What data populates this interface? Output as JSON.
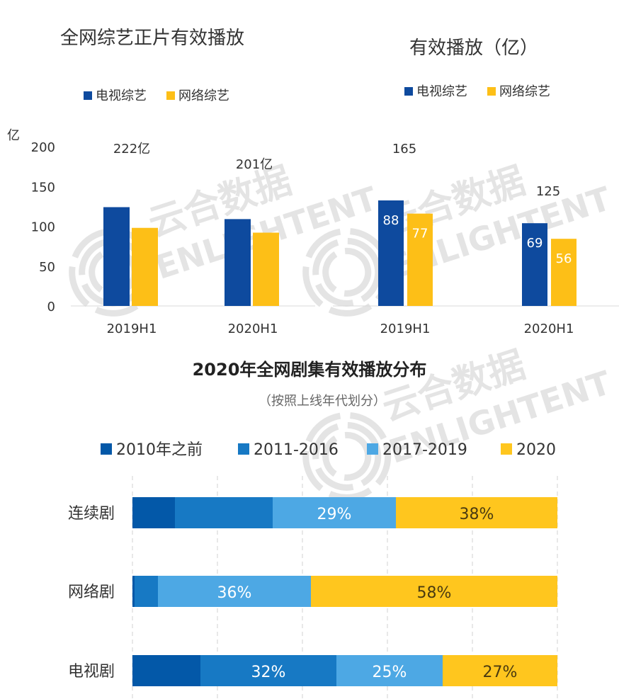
{
  "watermark": {
    "cn": "云合数据",
    "en": "ENLIGHTENT"
  },
  "colors": {
    "tv": "#0E4A9E",
    "net": "#FDBF17",
    "before2010": "#0358A8",
    "y2011_2016": "#1779C4",
    "y2017_2019": "#4DA8E4",
    "y2020": "#FFC61E"
  },
  "chart_data": [
    {
      "type": "bar",
      "title": "全网综艺正片有效播放",
      "ylabel": "亿",
      "ylim": [
        0,
        200
      ],
      "yticks": [
        "0",
        "50",
        "100",
        "150",
        "200"
      ],
      "categories": [
        "2019H1",
        "2020H1"
      ],
      "series": [
        {
          "name": "电视综艺",
          "values": [
            124,
            109
          ]
        },
        {
          "name": "网络综艺",
          "values": [
            98,
            92
          ]
        }
      ],
      "total_labels": [
        "222亿",
        "201亿"
      ],
      "legend": "top-left"
    },
    {
      "type": "bar",
      "title": "有效播放（亿）",
      "categories": [
        "2019H1",
        "2020H1"
      ],
      "series": [
        {
          "name": "电视综艺",
          "values": [
            88,
            69
          ]
        },
        {
          "name": "网络综艺",
          "values": [
            77,
            56
          ]
        }
      ],
      "total_labels": [
        "165",
        "125"
      ],
      "legend": "top"
    },
    {
      "type": "bar",
      "orientation": "horizontal-stacked-100",
      "title": "2020年全网剧集有效播放分布",
      "subtitle": "（按照上线年代划分）",
      "categories": [
        "连续剧",
        "网络剧",
        "电视剧"
      ],
      "series": [
        {
          "name": "2010年之前",
          "values": [
            10,
            0.5,
            16
          ],
          "labels": [
            "",
            "",
            ""
          ]
        },
        {
          "name": "2011-2016",
          "values": [
            23,
            5.5,
            32
          ],
          "labels": [
            "",
            "",
            "32%"
          ]
        },
        {
          "name": "2017-2019",
          "values": [
            29,
            36,
            25
          ],
          "labels": [
            "29%",
            "36%",
            "25%"
          ]
        },
        {
          "name": "2020",
          "values": [
            38,
            58,
            27
          ],
          "labels": [
            "38%",
            "58%",
            "27%"
          ]
        }
      ],
      "xlim": [
        0,
        100
      ],
      "grid": true,
      "legend": "top"
    }
  ]
}
